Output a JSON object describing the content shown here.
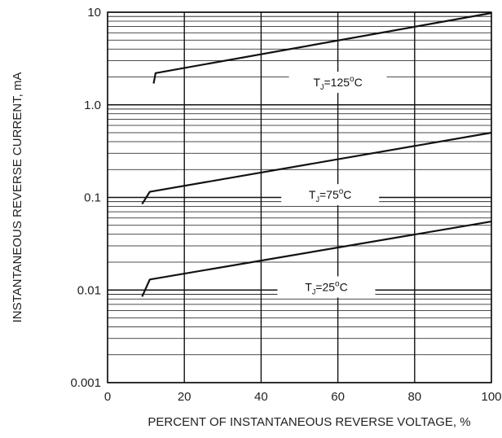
{
  "chart_data": {
    "type": "line",
    "title": "",
    "xlabel": "PERCENT OF INSTANTANEOUS REVERSE VOLTAGE, %",
    "ylabel": "INSTANTANEOUS  REVERSE  CURRENT, mA",
    "xlim": [
      0,
      100
    ],
    "ylim": [
      0.001,
      10
    ],
    "yscale": "log",
    "grid": true,
    "x_ticks": [
      0,
      20,
      40,
      60,
      80,
      100
    ],
    "x_tick_labels": [
      "0",
      "20",
      "40",
      "60",
      "80",
      "100"
    ],
    "y_ticks": [
      0.001,
      0.01,
      0.1,
      1,
      10
    ],
    "y_tick_labels": [
      "0.001",
      "0.01",
      "0.1",
      "1.0",
      "10"
    ],
    "line_color": "#111111",
    "grid_color": "#111111",
    "series": [
      {
        "label_sub": "J",
        "label_sup": "o",
        "label_main": "T",
        "label_tail": "=125",
        "label_unit": "C",
        "label_x": 60,
        "label_y_value": 1.75,
        "x": [
          12,
          12.5,
          100
        ],
        "y": [
          1.7,
          2.2,
          9.8
        ]
      },
      {
        "label_main": "T",
        "label_sub": "J",
        "label_tail": "=75",
        "label_sup": "o",
        "label_unit": "C",
        "label_x": 58,
        "label_y_value": 0.107,
        "x": [
          9,
          11,
          100
        ],
        "y": [
          0.085,
          0.115,
          0.5
        ]
      },
      {
        "label_main": "T",
        "label_sub": "J",
        "label_tail": "=25",
        "label_sup": "o",
        "label_unit": "C",
        "label_x": 57,
        "label_y_value": 0.0108,
        "x": [
          9,
          11,
          100
        ],
        "y": [
          0.0085,
          0.013,
          0.055
        ]
      }
    ]
  }
}
